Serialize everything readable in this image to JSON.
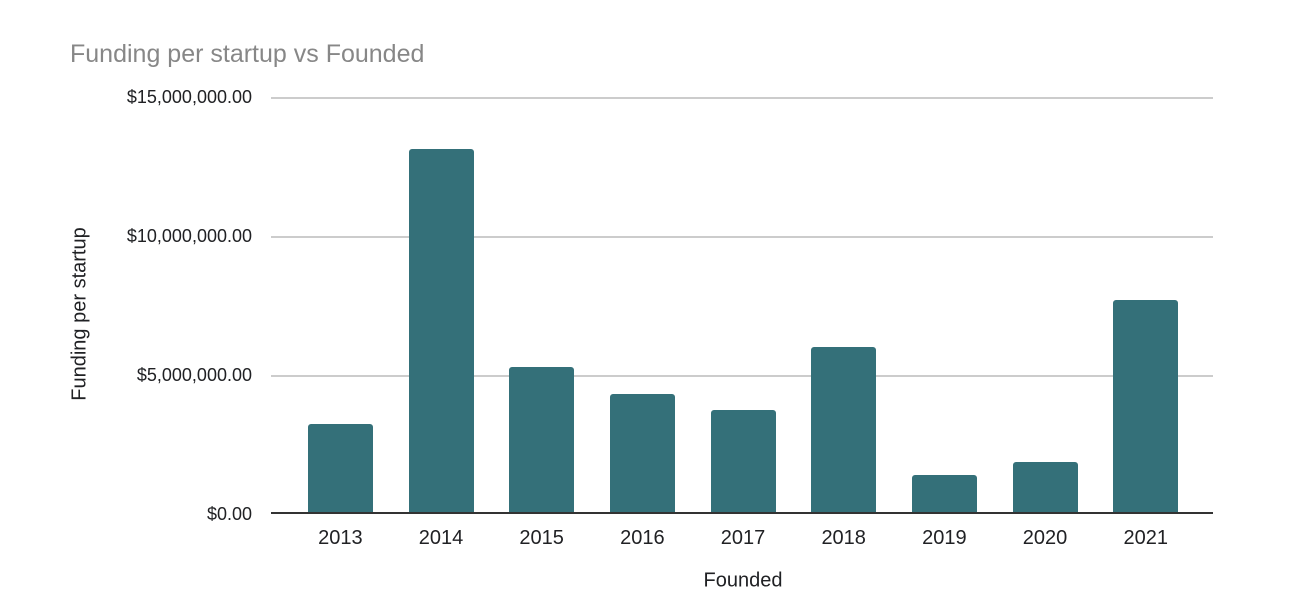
{
  "chart_data": {
    "type": "bar",
    "title": "Funding per startup vs Founded",
    "xlabel": "Founded",
    "ylabel": "Funding per startup",
    "categories": [
      "2013",
      "2014",
      "2015",
      "2016",
      "2017",
      "2018",
      "2019",
      "2020",
      "2021"
    ],
    "values": [
      3170000,
      13130000,
      5250000,
      4280000,
      3700000,
      5970000,
      1330000,
      1800000,
      7660000
    ],
    "ylim": [
      0,
      15000000
    ],
    "y_ticks": [
      {
        "value": 15000000,
        "label": "$15,000,000.00"
      },
      {
        "value": 10000000,
        "label": "$10,000,000.00"
      },
      {
        "value": 5000000,
        "label": "$5,000,000.00"
      },
      {
        "value": 0,
        "label": "$0.00"
      }
    ],
    "grid": true,
    "legend": "none",
    "colors": {
      "bar": "#347079",
      "title_text": "#878787",
      "axis_text": "#202124",
      "gridline": "#cccccc",
      "baseline": "#333333",
      "background": "#ffffff"
    }
  }
}
